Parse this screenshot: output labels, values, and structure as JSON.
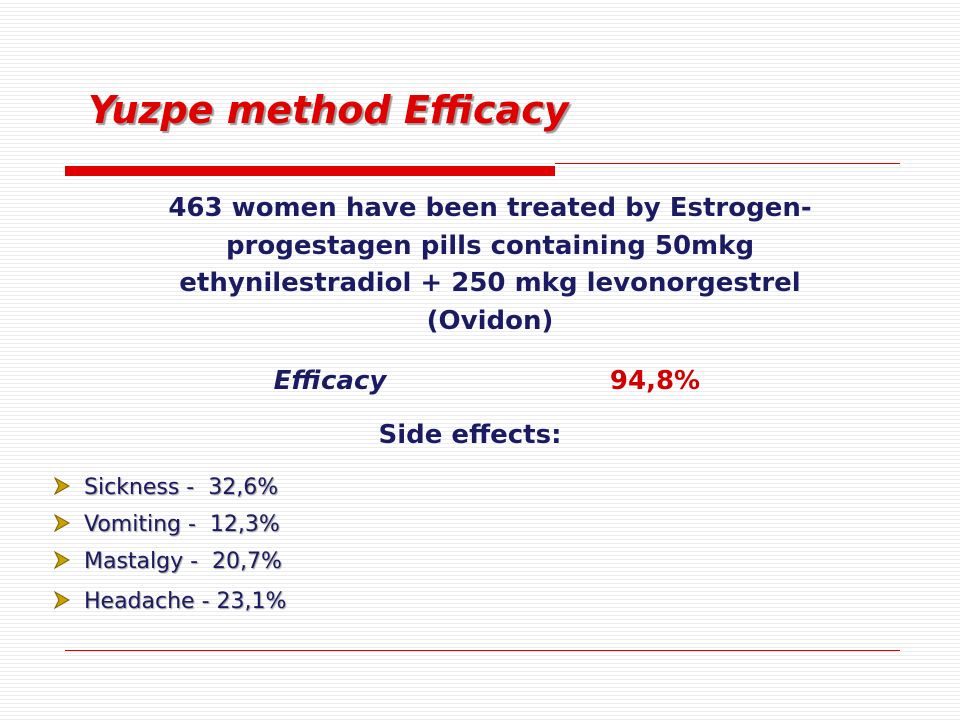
{
  "title": "Yuzpe method Efficacy",
  "body": {
    "lines": [
      "463 women have been treated by Estrogen-",
      "progestagen pills containing 50mkg",
      "ethynilestradiol + 250 mkg levonorgestrel",
      "(Ovidon)"
    ]
  },
  "efficacy": {
    "label": "Efficacy",
    "value": "94,8%"
  },
  "side_effects": {
    "heading": "Side effects:",
    "items": [
      "Sickness -  32,6%",
      "Vomiting -  12,3%",
      "Mastalgy -  20,7%",
      "Headache - 23,1%"
    ]
  }
}
